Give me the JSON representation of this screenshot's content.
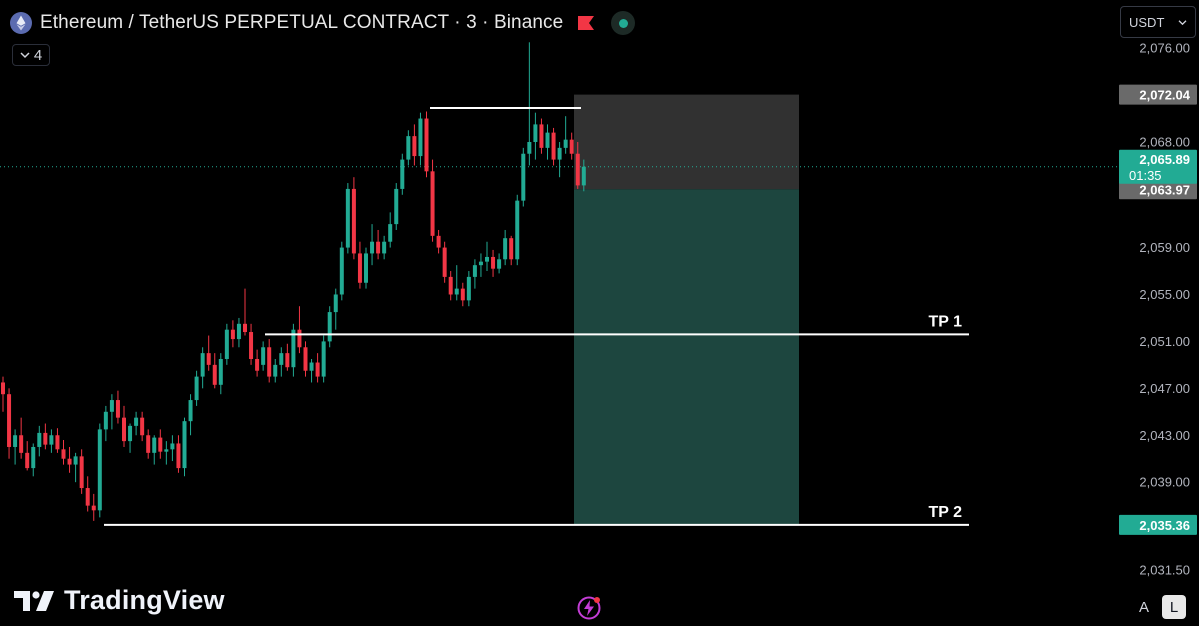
{
  "header": {
    "title": "Ethereum / TetherUS PERPETUAL CONTRACT · 3 · Binance",
    "indicator_count": "4"
  },
  "currency_selector": {
    "label": "USDT"
  },
  "branding": {
    "logo_text": "TradingView"
  },
  "scale_buttons": {
    "auto": "A",
    "log": "L"
  },
  "colors": {
    "up": "#22ab94",
    "down": "#f23645",
    "background": "#000000",
    "profit_zone": "#1f4a42",
    "risk_zone": "#3a3a3a"
  },
  "chart_data": {
    "type": "candlestick",
    "symbol": "ETHUSDT.P",
    "interval": "3",
    "ylim": [
      2029,
      2077
    ],
    "price_ticks": [
      "2,076.00",
      "2,068.00",
      "2,059.00",
      "2,055.00",
      "2,051.00",
      "2,047.00",
      "2,043.00",
      "2,039.00",
      "2,031.50"
    ],
    "price_labels": {
      "stop": "2,072.04",
      "last": "2,065.89",
      "countdown": "01:35",
      "entry": "2,063.97",
      "target": "2,035.36"
    },
    "levels": [
      {
        "label": "TP 1",
        "price": 2051.6
      },
      {
        "label": "TP 2",
        "price": 2035.36
      }
    ],
    "resistance_line": 2070.9,
    "position": {
      "side": "short",
      "entry": 2063.97,
      "stop": 2072.04,
      "target": 2035.36
    },
    "candles": [
      [
        2047.5,
        2048.0,
        2045.0,
        2046.5
      ],
      [
        2046.5,
        2047.0,
        2041.0,
        2042.0
      ],
      [
        2042.0,
        2043.5,
        2040.5,
        2043.0
      ],
      [
        2043.0,
        2044.5,
        2041.0,
        2041.5
      ],
      [
        2041.5,
        2042.5,
        2040.0,
        2040.2
      ],
      [
        2040.2,
        2042.3,
        2039.5,
        2042.0
      ],
      [
        2042.0,
        2043.8,
        2041.2,
        2043.2
      ],
      [
        2043.2,
        2044.0,
        2041.8,
        2042.2
      ],
      [
        2042.2,
        2043.5,
        2041.5,
        2043.0
      ],
      [
        2043.0,
        2043.6,
        2041.5,
        2041.8
      ],
      [
        2041.8,
        2042.6,
        2040.5,
        2041.0
      ],
      [
        2041.0,
        2042.0,
        2039.8,
        2040.5
      ],
      [
        2040.5,
        2041.5,
        2039.0,
        2041.2
      ],
      [
        2041.2,
        2041.8,
        2038.0,
        2038.5
      ],
      [
        2038.5,
        2039.5,
        2036.5,
        2037.0
      ],
      [
        2037.0,
        2038.0,
        2035.7,
        2036.6
      ],
      [
        2036.6,
        2044.0,
        2036.0,
        2043.5
      ],
      [
        2043.5,
        2045.5,
        2042.5,
        2045.0
      ],
      [
        2045.0,
        2046.5,
        2043.5,
        2046.0
      ],
      [
        2046.0,
        2046.8,
        2044.0,
        2044.5
      ],
      [
        2044.5,
        2045.5,
        2042.0,
        2042.5
      ],
      [
        2042.5,
        2044.0,
        2041.5,
        2043.8
      ],
      [
        2043.8,
        2045.0,
        2043.0,
        2044.5
      ],
      [
        2044.5,
        2045.0,
        2042.5,
        2043.0
      ],
      [
        2043.0,
        2043.5,
        2041.0,
        2041.5
      ],
      [
        2041.5,
        2043.0,
        2040.5,
        2042.8
      ],
      [
        2042.8,
        2043.5,
        2041.0,
        2041.6
      ],
      [
        2041.6,
        2042.5,
        2040.5,
        2041.8
      ],
      [
        2041.8,
        2043.0,
        2040.8,
        2042.3
      ],
      [
        2042.3,
        2043.0,
        2039.8,
        2040.2
      ],
      [
        2040.2,
        2044.5,
        2039.5,
        2044.2
      ],
      [
        2044.2,
        2046.5,
        2043.0,
        2046.0
      ],
      [
        2046.0,
        2048.5,
        2045.5,
        2048.0
      ],
      [
        2048.0,
        2050.5,
        2047.0,
        2050.0
      ],
      [
        2050.0,
        2051.5,
        2048.5,
        2049.0
      ],
      [
        2049.0,
        2050.0,
        2047.0,
        2047.3
      ],
      [
        2047.3,
        2050.0,
        2046.5,
        2049.5
      ],
      [
        2049.5,
        2052.5,
        2049.0,
        2052.0
      ],
      [
        2052.0,
        2052.8,
        2050.5,
        2051.2
      ],
      [
        2051.2,
        2053.0,
        2050.5,
        2052.5
      ],
      [
        2052.5,
        2055.5,
        2051.5,
        2051.8
      ],
      [
        2051.8,
        2052.5,
        2049.0,
        2049.5
      ],
      [
        2049.5,
        2050.3,
        2048.0,
        2048.5
      ],
      [
        2049.0,
        2051.0,
        2048.5,
        2050.5
      ],
      [
        2050.5,
        2051.2,
        2047.5,
        2048.0
      ],
      [
        2048.0,
        2049.5,
        2047.5,
        2049.0
      ],
      [
        2049.0,
        2050.5,
        2048.0,
        2050.0
      ],
      [
        2050.0,
        2050.8,
        2048.5,
        2048.8
      ],
      [
        2048.8,
        2052.5,
        2048.0,
        2052.0
      ],
      [
        2052.0,
        2054.0,
        2050.0,
        2050.5
      ],
      [
        2050.5,
        2051.0,
        2048.0,
        2048.5
      ],
      [
        2048.5,
        2049.5,
        2047.5,
        2049.2
      ],
      [
        2049.2,
        2050.0,
        2047.5,
        2048.0
      ],
      [
        2048.0,
        2051.5,
        2047.5,
        2051.0
      ],
      [
        2051.0,
        2054.0,
        2050.5,
        2053.5
      ],
      [
        2053.5,
        2055.5,
        2052.0,
        2055.0
      ],
      [
        2055.0,
        2059.5,
        2054.5,
        2059.0
      ],
      [
        2059.0,
        2064.5,
        2058.5,
        2064.0
      ],
      [
        2064.0,
        2065.0,
        2058.0,
        2058.5
      ],
      [
        2058.5,
        2059.5,
        2055.5,
        2056.0
      ],
      [
        2056.0,
        2059.0,
        2055.5,
        2058.5
      ],
      [
        2058.5,
        2061.0,
        2057.5,
        2059.5
      ],
      [
        2059.5,
        2060.5,
        2058.0,
        2058.5
      ],
      [
        2058.5,
        2060.0,
        2058.0,
        2059.5
      ],
      [
        2059.5,
        2062.0,
        2059.0,
        2061.0
      ],
      [
        2061.0,
        2064.5,
        2060.5,
        2064.0
      ],
      [
        2064.0,
        2067.0,
        2063.5,
        2066.5
      ],
      [
        2066.5,
        2069.0,
        2066.0,
        2068.5
      ],
      [
        2068.5,
        2069.5,
        2066.0,
        2066.8
      ],
      [
        2066.8,
        2070.5,
        2066.0,
        2070.0
      ],
      [
        2070.0,
        2070.6,
        2065.0,
        2065.5
      ],
      [
        2065.5,
        2066.5,
        2059.5,
        2060.0
      ],
      [
        2060.0,
        2060.5,
        2058.5,
        2059.0
      ],
      [
        2059.0,
        2059.5,
        2056.0,
        2056.5
      ],
      [
        2056.5,
        2057.0,
        2054.5,
        2055.0
      ],
      [
        2055.0,
        2057.5,
        2054.5,
        2055.5
      ],
      [
        2055.5,
        2056.0,
        2054.0,
        2054.5
      ],
      [
        2054.5,
        2057.0,
        2054.0,
        2056.5
      ],
      [
        2056.5,
        2058.0,
        2055.5,
        2057.5
      ],
      [
        2057.5,
        2058.5,
        2056.5,
        2057.8
      ],
      [
        2057.8,
        2059.5,
        2057.0,
        2058.2
      ],
      [
        2058.2,
        2058.8,
        2056.5,
        2057.2
      ],
      [
        2057.2,
        2058.5,
        2056.8,
        2058.0
      ],
      [
        2058.0,
        2060.5,
        2057.5,
        2059.8
      ],
      [
        2059.8,
        2060.0,
        2057.5,
        2058.0
      ],
      [
        2058.0,
        2063.5,
        2057.5,
        2063.0
      ],
      [
        2063.0,
        2067.5,
        2062.5,
        2067.0
      ],
      [
        2067.0,
        2076.5,
        2066.0,
        2068.0
      ],
      [
        2068.0,
        2070.5,
        2066.5,
        2069.5
      ],
      [
        2069.5,
        2070.0,
        2067.0,
        2067.5
      ],
      [
        2067.5,
        2069.5,
        2066.5,
        2068.8
      ],
      [
        2068.8,
        2069.2,
        2066.0,
        2066.5
      ],
      [
        2066.5,
        2068.0,
        2065.0,
        2067.5
      ],
      [
        2067.5,
        2070.2,
        2067.0,
        2068.2
      ],
      [
        2068.2,
        2068.8,
        2066.5,
        2067.0
      ],
      [
        2067.0,
        2068.0,
        2064.0,
        2064.3
      ],
      [
        2064.3,
        2066.5,
        2063.8,
        2065.89
      ]
    ]
  }
}
